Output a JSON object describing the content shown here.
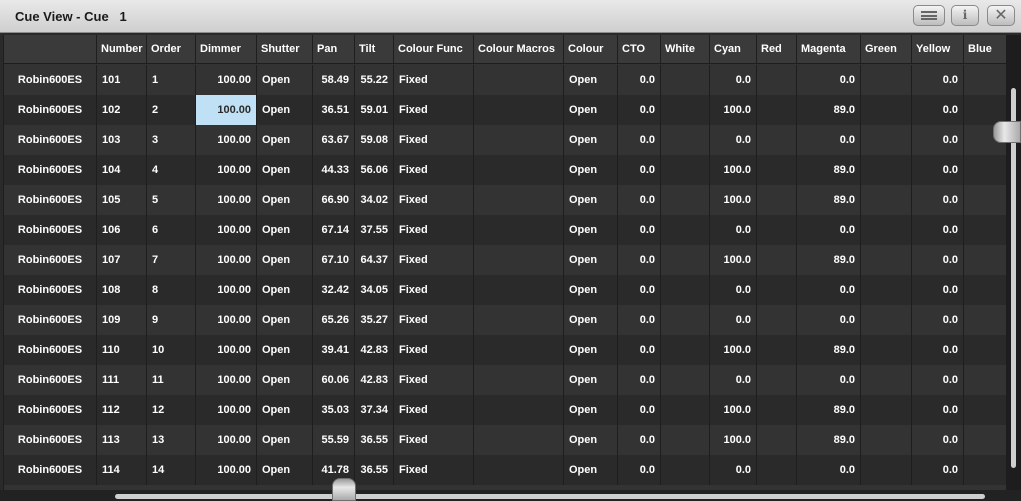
{
  "window": {
    "title": "Cue View - Cue   1"
  },
  "title_buttons": {
    "menu_icon": "menu-icon",
    "info_label": "i",
    "close_label": "✕"
  },
  "table": {
    "headers": [
      "",
      "Number",
      "Order",
      "Dimmer",
      "Shutter",
      "Pan",
      "Tilt",
      "Colour Func",
      "Colour Macros",
      "Colour",
      "CTO",
      "White",
      "Cyan",
      "Red",
      "Magenta",
      "Green",
      "Yellow",
      "Blue"
    ],
    "rows": [
      [
        "Robin600ES",
        "101",
        "1",
        "100.00",
        "Open",
        "58.49",
        "55.22",
        "Fixed",
        "",
        "Open",
        "0.0",
        "",
        "0.0",
        "",
        "0.0",
        "",
        "0.0",
        ""
      ],
      [
        "Robin600ES",
        "102",
        "2",
        "100.00",
        "Open",
        "36.51",
        "59.01",
        "Fixed",
        "",
        "Open",
        "0.0",
        "",
        "100.0",
        "",
        "89.0",
        "",
        "0.0",
        ""
      ],
      [
        "Robin600ES",
        "103",
        "3",
        "100.00",
        "Open",
        "63.67",
        "59.08",
        "Fixed",
        "",
        "Open",
        "0.0",
        "",
        "0.0",
        "",
        "0.0",
        "",
        "0.0",
        ""
      ],
      [
        "Robin600ES",
        "104",
        "4",
        "100.00",
        "Open",
        "44.33",
        "56.06",
        "Fixed",
        "",
        "Open",
        "0.0",
        "",
        "100.0",
        "",
        "89.0",
        "",
        "0.0",
        ""
      ],
      [
        "Robin600ES",
        "105",
        "5",
        "100.00",
        "Open",
        "66.90",
        "34.02",
        "Fixed",
        "",
        "Open",
        "0.0",
        "",
        "100.0",
        "",
        "89.0",
        "",
        "0.0",
        ""
      ],
      [
        "Robin600ES",
        "106",
        "6",
        "100.00",
        "Open",
        "67.14",
        "37.55",
        "Fixed",
        "",
        "Open",
        "0.0",
        "",
        "0.0",
        "",
        "0.0",
        "",
        "0.0",
        ""
      ],
      [
        "Robin600ES",
        "107",
        "7",
        "100.00",
        "Open",
        "67.10",
        "64.37",
        "Fixed",
        "",
        "Open",
        "0.0",
        "",
        "100.0",
        "",
        "89.0",
        "",
        "0.0",
        ""
      ],
      [
        "Robin600ES",
        "108",
        "8",
        "100.00",
        "Open",
        "32.42",
        "34.05",
        "Fixed",
        "",
        "Open",
        "0.0",
        "",
        "0.0",
        "",
        "0.0",
        "",
        "0.0",
        ""
      ],
      [
        "Robin600ES",
        "109",
        "9",
        "100.00",
        "Open",
        "65.26",
        "35.27",
        "Fixed",
        "",
        "Open",
        "0.0",
        "",
        "0.0",
        "",
        "0.0",
        "",
        "0.0",
        ""
      ],
      [
        "Robin600ES",
        "110",
        "10",
        "100.00",
        "Open",
        "39.41",
        "42.83",
        "Fixed",
        "",
        "Open",
        "0.0",
        "",
        "100.0",
        "",
        "89.0",
        "",
        "0.0",
        ""
      ],
      [
        "Robin600ES",
        "111",
        "11",
        "100.00",
        "Open",
        "60.06",
        "42.83",
        "Fixed",
        "",
        "Open",
        "0.0",
        "",
        "0.0",
        "",
        "0.0",
        "",
        "0.0",
        ""
      ],
      [
        "Robin600ES",
        "112",
        "12",
        "100.00",
        "Open",
        "35.03",
        "37.34",
        "Fixed",
        "",
        "Open",
        "0.0",
        "",
        "100.0",
        "",
        "89.0",
        "",
        "0.0",
        ""
      ],
      [
        "Robin600ES",
        "113",
        "13",
        "100.00",
        "Open",
        "55.59",
        "36.55",
        "Fixed",
        "",
        "Open",
        "0.0",
        "",
        "100.0",
        "",
        "89.0",
        "",
        "0.0",
        ""
      ],
      [
        "Robin600ES",
        "114",
        "14",
        "100.00",
        "Open",
        "41.78",
        "36.55",
        "Fixed",
        "",
        "Open",
        "0.0",
        "",
        "0.0",
        "",
        "0.0",
        "",
        "0.0",
        ""
      ]
    ],
    "selected_cell": {
      "row": 1,
      "col": 3
    }
  },
  "colors": {
    "selection": "#bfe0f5",
    "titlebar": "#dcdcdc",
    "grid_bg": "#333333",
    "grid_alt": "#2a2a2a"
  }
}
